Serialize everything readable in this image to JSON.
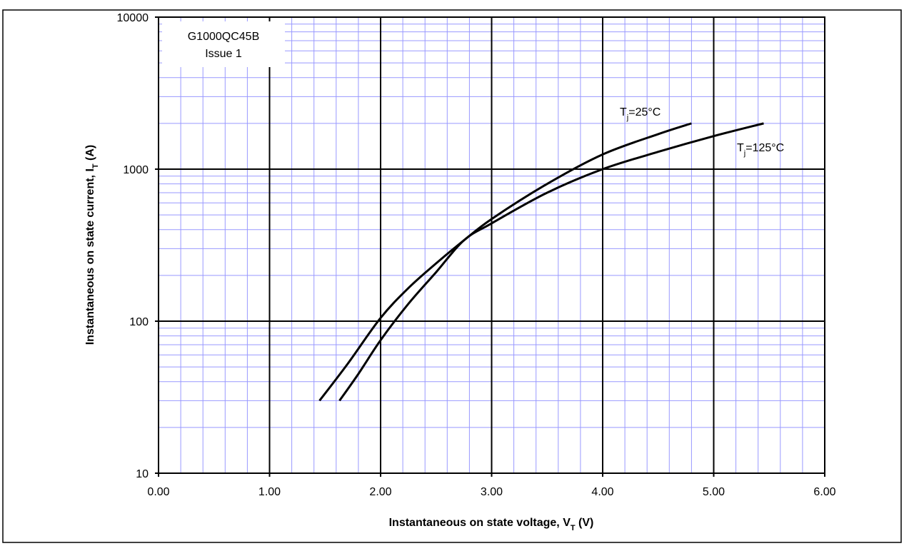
{
  "chart_data": {
    "type": "line",
    "annotation": [
      "G1000QC45B",
      "Issue 1"
    ],
    "xlabel": {
      "text": "Instantaneous  on state voltage, V",
      "sub": "T",
      "rest": " (V)"
    },
    "ylabel": {
      "text": "Instantaneous  on state current, I",
      "sub": "T",
      "rest": " (A)"
    },
    "series": [
      {
        "label": {
          "text": "T",
          "sub": "j",
          "rest": "=25°C"
        },
        "color": "#000000",
        "x": [
          1.45,
          1.7,
          2.0,
          2.25,
          2.5,
          2.75,
          3.0,
          3.5,
          4.0,
          4.5,
          4.8
        ],
        "values": [
          30,
          52,
          105,
          165,
          240,
          340,
          470,
          800,
          1250,
          1700,
          2000
        ]
      },
      {
        "label": {
          "text": "T",
          "sub": "j",
          "rest": "=125°C"
        },
        "color": "#000000",
        "x": [
          1.63,
          1.8,
          2.0,
          2.25,
          2.5,
          2.75,
          3.0,
          3.5,
          4.0,
          4.5,
          5.0,
          5.45
        ],
        "values": [
          30,
          45,
          75,
          130,
          210,
          340,
          440,
          700,
          1000,
          1300,
          1650,
          2000
        ]
      }
    ],
    "xlim": [
      0,
      6
    ],
    "xticks": [
      {
        "value": 0,
        "label": "0.00"
      },
      {
        "value": 1,
        "label": "1.00"
      },
      {
        "value": 2,
        "label": "2.00"
      },
      {
        "value": 3,
        "label": "3.00"
      },
      {
        "value": 4,
        "label": "4.00"
      },
      {
        "value": 5,
        "label": "5.00"
      },
      {
        "value": 6,
        "label": "6.00"
      }
    ],
    "ylim": [
      10,
      10000
    ],
    "yticks": [
      10,
      100,
      1000,
      10000
    ],
    "ylog": true,
    "grid": true,
    "minor_grid_color": "#9999ff"
  }
}
